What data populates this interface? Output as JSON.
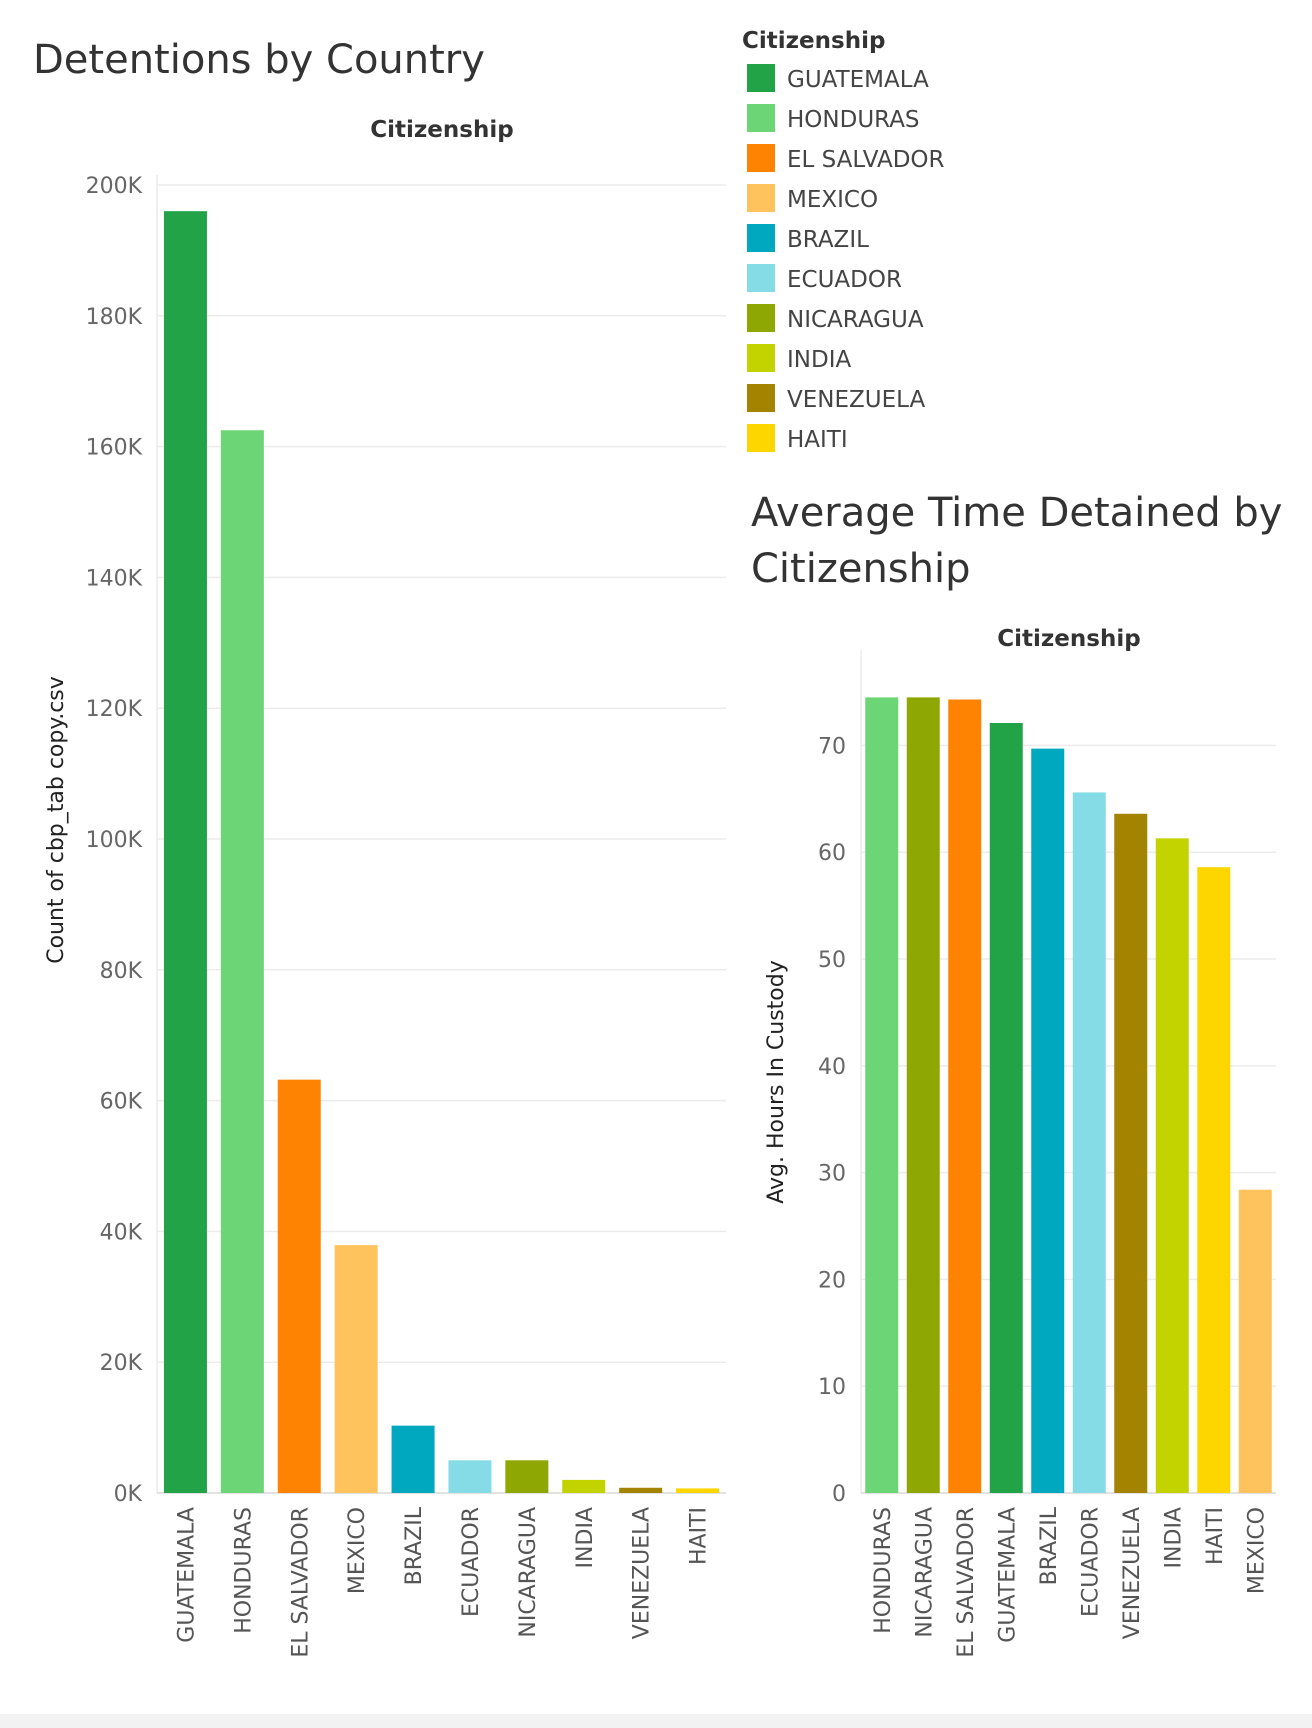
{
  "chart_data": [
    {
      "type": "bar",
      "title": "Detentions by Country",
      "header": "Citizenship",
      "ylabel": "Count of cbp_tab copy.csv",
      "xlabel": "",
      "ylim": [
        0,
        200000
      ],
      "y_ticks": [
        0,
        20000,
        40000,
        60000,
        80000,
        100000,
        120000,
        140000,
        160000,
        180000,
        200000
      ],
      "y_tick_labels": [
        "0K",
        "20K",
        "40K",
        "60K",
        "80K",
        "100K",
        "120K",
        "140K",
        "160K",
        "180K",
        "200K"
      ],
      "grid": true,
      "categories": [
        "GUATEMALA",
        "HONDURAS",
        "EL SALVADOR",
        "MEXICO",
        "BRAZIL",
        "ECUADOR",
        "NICARAGUA",
        "INDIA",
        "VENEZUELA",
        "HAITI"
      ],
      "values": [
        196000,
        162500,
        63200,
        37900,
        10300,
        5000,
        5000,
        2000,
        800,
        700
      ]
    },
    {
      "type": "bar",
      "title": "Average Time Detained by Citizenship",
      "header": "Citizenship",
      "ylabel": "Avg. Hours In Custody",
      "xlabel": "",
      "ylim": [
        0,
        78
      ],
      "y_ticks": [
        0,
        10,
        20,
        30,
        40,
        50,
        60,
        70
      ],
      "y_tick_labels": [
        "0",
        "10",
        "20",
        "30",
        "40",
        "50",
        "60",
        "70"
      ],
      "grid": true,
      "categories": [
        "HONDURAS",
        "NICARAGUA",
        "EL SALVADOR",
        "GUATEMALA",
        "BRAZIL",
        "ECUADOR",
        "VENEZUELA",
        "INDIA",
        "HAITI",
        "MEXICO"
      ],
      "values": [
        74.5,
        74.5,
        74.3,
        72.1,
        69.7,
        65.6,
        63.6,
        61.3,
        58.6,
        28.4
      ]
    }
  ],
  "legend": {
    "title": "Citizenship",
    "placement": "top-right",
    "items": [
      {
        "label": "GUATEMALA",
        "color": "#22a348"
      },
      {
        "label": "HONDURAS",
        "color": "#6cd576"
      },
      {
        "label": "EL SALVADOR",
        "color": "#ff8303"
      },
      {
        "label": "MEXICO",
        "color": "#fec35d"
      },
      {
        "label": "BRAZIL",
        "color": "#00a8bf"
      },
      {
        "label": "ECUADOR",
        "color": "#86dce6"
      },
      {
        "label": "NICARAGUA",
        "color": "#8fa703"
      },
      {
        "label": "INDIA",
        "color": "#c3d300"
      },
      {
        "label": "VENEZUELA",
        "color": "#a38300"
      },
      {
        "label": "HAITI",
        "color": "#fdd600"
      }
    ]
  },
  "colors": {
    "grid": "#ececec",
    "text": "#333333",
    "tick_text": "#666666",
    "footer": "#f2f2f2"
  }
}
